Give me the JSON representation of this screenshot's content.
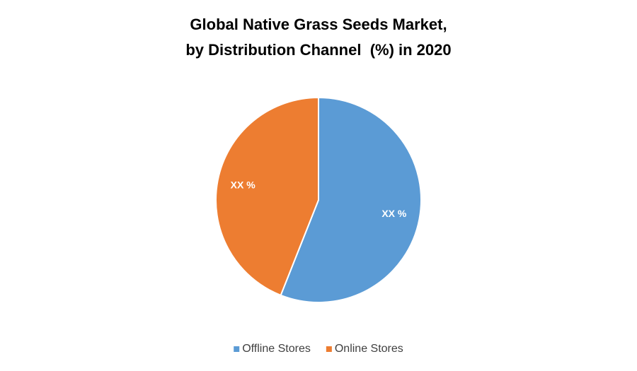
{
  "chart_data": {
    "type": "pie",
    "title": [
      "Global Native Grass Seeds Market,",
      "by Distribution Channel  (%) in 2020"
    ],
    "categories": [
      "Offline Stores",
      "Online Stores"
    ],
    "values": [
      56,
      44
    ],
    "value_labels": [
      "XX %",
      "XX %"
    ],
    "colors": [
      "#5b9bd5",
      "#ed7d31"
    ],
    "legend": "bottom"
  }
}
